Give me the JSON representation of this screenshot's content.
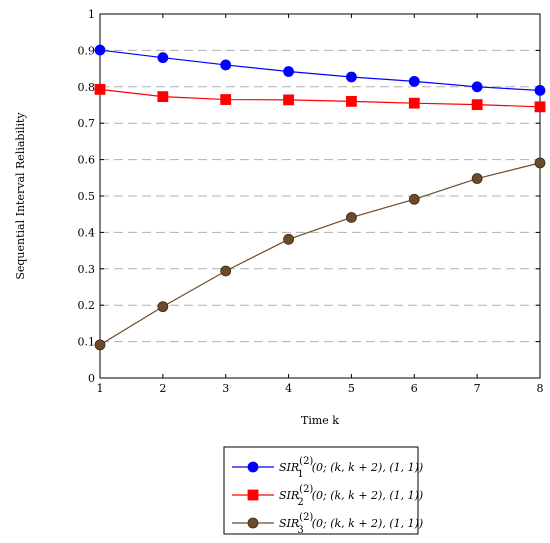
{
  "chart_data": {
    "type": "line",
    "xlabel": "Time k",
    "ylabel": "Sequential Interval Reliability",
    "xlim": [
      1,
      8
    ],
    "ylim": [
      0,
      1
    ],
    "x": [
      1,
      2,
      3,
      4,
      5,
      6,
      7,
      8
    ],
    "x_ticks": [
      "1",
      "2",
      "3",
      "4",
      "5",
      "6",
      "7",
      "8"
    ],
    "y_ticks": [
      "0",
      "0.1",
      "0.2",
      "0.3",
      "0.4",
      "0.5",
      "0.6",
      "0.7",
      "0.8",
      "0.9",
      "1"
    ],
    "grid": "horizontal dashed",
    "legend_position": "bottom-center, below plot",
    "series": [
      {
        "label_sub": "1",
        "color": "#0000ff",
        "marker": "circle",
        "values": [
          0.901,
          0.88,
          0.86,
          0.842,
          0.827,
          0.815,
          0.8,
          0.79
        ]
      },
      {
        "label_sub": "2",
        "color": "#ff0000",
        "marker": "square",
        "values": [
          0.793,
          0.773,
          0.765,
          0.764,
          0.76,
          0.755,
          0.751,
          0.745
        ]
      },
      {
        "label_sub": "3",
        "color": "#6b4b2a",
        "marker": "circle",
        "values": [
          0.091,
          0.196,
          0.294,
          0.381,
          0.441,
          0.491,
          0.548,
          0.591
        ]
      }
    ],
    "legend_label_prefix": "SIR",
    "legend_label_sup": "(2)",
    "legend_label_suffix": "(0; (k, k + 2), (1, 1))"
  }
}
